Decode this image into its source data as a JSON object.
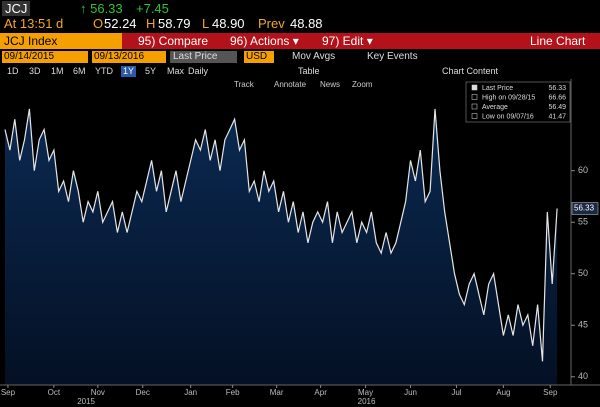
{
  "header": {
    "ticker": "JCJ",
    "price": "↑ 56.33",
    "change": "+7.45",
    "time": "At 13:51 d",
    "open_label": "O",
    "open": "52.24",
    "high_label": "H",
    "high": "58.79",
    "low_label": "L",
    "low": "48.90",
    "prev_label": "Prev",
    "prev": "48.88"
  },
  "toolbar": {
    "security": "JCJ Index",
    "buttons": [
      "95) Compare",
      "96) Actions ▾",
      "97) Edit ▾"
    ],
    "chart_type": "Line Chart"
  },
  "controls": {
    "start_date": "09/14/2015",
    "end_date": "09/13/2016",
    "field": "Last Price",
    "currency": "USD",
    "mov_avgs": "Mov Avgs",
    "key_events": "Key Events",
    "periods": [
      "1D",
      "3D",
      "1M",
      "6M",
      "YTD",
      "1Y",
      "5Y",
      "Max"
    ],
    "selected_period": "1Y",
    "frequency": "Daily",
    "table": "Table",
    "chart_content": "Chart Content",
    "tools": [
      "Track",
      "Annotate",
      "News",
      "Zoom"
    ]
  },
  "chart_data": {
    "type": "area",
    "color": "#e6e6e6",
    "fill": "#0b2a52",
    "values": [
      64,
      62,
      65,
      61,
      63,
      66,
      60,
      63,
      64,
      61,
      62,
      58,
      59,
      57,
      60,
      58,
      55,
      57,
      56,
      58,
      55,
      56,
      57,
      54,
      56,
      54,
      56,
      58,
      57,
      59,
      61,
      58,
      60,
      56,
      58,
      60,
      57,
      59,
      61,
      63,
      62,
      64,
      61,
      63,
      60,
      63,
      64,
      65,
      62,
      63,
      58,
      59,
      57,
      60,
      58,
      59,
      56,
      58,
      55,
      57,
      54,
      56,
      53,
      55,
      56,
      55,
      57,
      53,
      56,
      54,
      55,
      56,
      53,
      55,
      54,
      56,
      53,
      52,
      54,
      52,
      53,
      55,
      57,
      61,
      59,
      62,
      57,
      58,
      66,
      60,
      56,
      53,
      50,
      48,
      47,
      49,
      50,
      48,
      46,
      49,
      50,
      47,
      44,
      46,
      44,
      47,
      45,
      46,
      43,
      47,
      41.5,
      56,
      49,
      56.33
    ],
    "xlim": [
      0,
      114
    ],
    "xticks": [
      {
        "value": 0.6,
        "label": "Sep"
      },
      {
        "value": 10,
        "label": "Oct"
      },
      {
        "value": 19,
        "label": "Nov"
      },
      {
        "value": 28.2,
        "label": "Dec"
      },
      {
        "value": 38,
        "label": "Jan"
      },
      {
        "value": 46.6,
        "label": "Feb"
      },
      {
        "value": 55.6,
        "label": "Mar"
      },
      {
        "value": 64.6,
        "label": "Apr"
      },
      {
        "value": 73.8,
        "label": "May"
      },
      {
        "value": 83,
        "label": "Jun"
      },
      {
        "value": 92.4,
        "label": "Jul"
      },
      {
        "value": 102,
        "label": "Aug"
      },
      {
        "value": 111.6,
        "label": "Sep"
      }
    ],
    "year_ticks": [
      {
        "value": 16.6,
        "label": "2015"
      },
      {
        "value": 74,
        "label": "2016"
      }
    ],
    "ylim": [
      39.2,
      68.9
    ],
    "yticks": [
      40,
      45,
      50,
      55,
      60
    ],
    "grid": false,
    "axis_side": "right",
    "last_label": "56.33",
    "legend": [
      {
        "label": "Last Price",
        "value": "56.33"
      },
      {
        "label": "High on 09/28/15",
        "value": "66.66"
      },
      {
        "label": "Average",
        "value": "56.49"
      },
      {
        "label": "Low on 09/07/16",
        "value": "41.47"
      }
    ]
  }
}
